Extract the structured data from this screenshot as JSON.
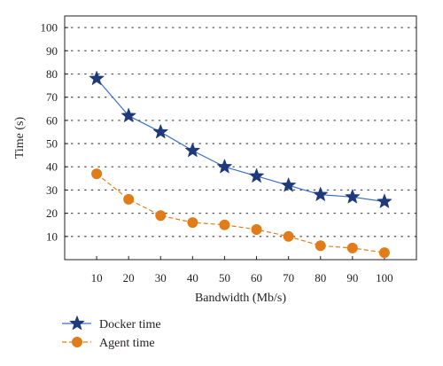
{
  "chart_data": {
    "type": "line",
    "xlabel": "Bandwidth (Mb/s)",
    "ylabel": "Time (s)",
    "x": [
      10,
      20,
      30,
      40,
      50,
      60,
      70,
      80,
      90,
      100
    ],
    "xticks": [
      "10",
      "20",
      "30",
      "40",
      "50",
      "60",
      "70",
      "80",
      "90",
      "100"
    ],
    "yticks": [
      "10",
      "20",
      "30",
      "40",
      "50",
      "60",
      "70",
      "80",
      "90",
      "100"
    ],
    "xlim": [
      0,
      110
    ],
    "ylim": [
      0,
      105
    ],
    "grid": "horizontal dotted",
    "legend_position": "bottom-left, below plot",
    "series": [
      {
        "name": "Docker time",
        "values": [
          78,
          62,
          55,
          47,
          40,
          36,
          32,
          28,
          27,
          25
        ],
        "color": "#3a6fc4",
        "marker": "star",
        "marker_color": "#1f3a7a",
        "line_style": "solid"
      },
      {
        "name": "Agent time",
        "values": [
          37,
          26,
          19,
          16,
          15,
          13,
          10,
          6,
          5,
          3
        ],
        "color": "#e07d1a",
        "marker": "circle",
        "marker_color": "#e07d1a",
        "line_style": "dashed"
      }
    ]
  }
}
